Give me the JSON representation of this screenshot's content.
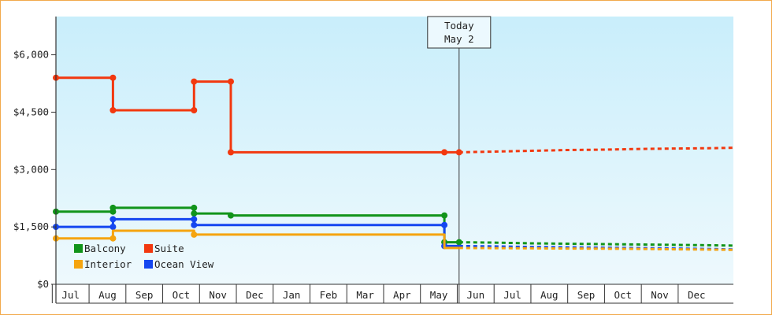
{
  "chart_data": {
    "type": "line",
    "ylim": [
      0,
      7000
    ],
    "yticks": [
      0,
      1500,
      3000,
      4500,
      6000
    ],
    "ytick_labels": [
      "$0",
      "$1,500",
      "$3,000",
      "$4,500",
      "$6,000"
    ],
    "x_months": [
      "Jul",
      "Aug",
      "Sep",
      "Oct",
      "Nov",
      "Dec",
      "Jan",
      "Feb",
      "Mar",
      "Apr",
      "May",
      "Jun",
      "Jul",
      "Aug",
      "Sep",
      "Oct",
      "Nov",
      "Dec"
    ],
    "xlim": [
      -0.4,
      18.0
    ],
    "today": {
      "x": 10.55,
      "label_line1": "Today",
      "label_line2": "May 2"
    },
    "background": {
      "top": "#c9eefb",
      "bottom": "#eef9fd"
    },
    "legend": [
      {
        "name": "Balcony",
        "color": "#11941a"
      },
      {
        "name": "Suite",
        "color": "#f2380f"
      },
      {
        "name": "Interior",
        "color": "#f5a40f"
      },
      {
        "name": "Ocean View",
        "color": "#1547f0"
      }
    ],
    "series": [
      {
        "name": "Suite",
        "color": "#f2380f",
        "history": [
          [
            -0.4,
            5400
          ],
          [
            1.15,
            5400
          ],
          [
            1.15,
            4550
          ],
          [
            3.35,
            4550
          ],
          [
            3.35,
            5300
          ],
          [
            4.35,
            5300
          ],
          [
            4.35,
            3450
          ],
          [
            10.15,
            3450
          ],
          [
            10.55,
            3450
          ]
        ],
        "markers": [
          [
            -0.4,
            5400
          ],
          [
            1.15,
            5400
          ],
          [
            1.15,
            4550
          ],
          [
            3.35,
            4550
          ],
          [
            3.35,
            5300
          ],
          [
            4.35,
            5300
          ],
          [
            4.35,
            3450
          ],
          [
            10.15,
            3450
          ],
          [
            10.55,
            3450
          ]
        ],
        "forecast": [
          [
            10.55,
            3450
          ],
          [
            11.5,
            3470
          ],
          [
            12.5,
            3490
          ],
          [
            13.5,
            3510
          ],
          [
            14.5,
            3520
          ],
          [
            15.5,
            3540
          ],
          [
            16.5,
            3550
          ],
          [
            17.5,
            3560
          ],
          [
            18.0,
            3570
          ]
        ]
      },
      {
        "name": "Balcony",
        "color": "#11941a",
        "history": [
          [
            -0.4,
            1900
          ],
          [
            1.15,
            1900
          ],
          [
            1.15,
            2000
          ],
          [
            3.35,
            2000
          ],
          [
            3.35,
            1850
          ],
          [
            4.35,
            1850
          ],
          [
            4.35,
            1800
          ],
          [
            10.15,
            1800
          ],
          [
            10.15,
            1100
          ],
          [
            10.55,
            1100
          ]
        ],
        "markers": [
          [
            -0.4,
            1900
          ],
          [
            1.15,
            1900
          ],
          [
            1.15,
            2000
          ],
          [
            3.35,
            2000
          ],
          [
            3.35,
            1850
          ],
          [
            4.35,
            1800
          ],
          [
            10.15,
            1800
          ],
          [
            10.15,
            1100
          ],
          [
            10.55,
            1100
          ]
        ],
        "forecast": [
          [
            10.55,
            1100
          ],
          [
            11.5,
            1090
          ],
          [
            12.5,
            1070
          ],
          [
            13.5,
            1060
          ],
          [
            14.5,
            1050
          ],
          [
            15.5,
            1040
          ],
          [
            16.5,
            1030
          ],
          [
            17.5,
            1020
          ],
          [
            18.0,
            1010
          ]
        ]
      },
      {
        "name": "Ocean View",
        "color": "#1547f0",
        "history": [
          [
            -0.4,
            1500
          ],
          [
            1.15,
            1500
          ],
          [
            1.15,
            1700
          ],
          [
            3.35,
            1700
          ],
          [
            3.35,
            1550
          ],
          [
            10.15,
            1550
          ],
          [
            10.15,
            1000
          ],
          [
            10.55,
            1000
          ]
        ],
        "markers": [
          [
            -0.4,
            1500
          ],
          [
            1.15,
            1500
          ],
          [
            1.15,
            1700
          ],
          [
            3.35,
            1700
          ],
          [
            3.35,
            1550
          ],
          [
            10.15,
            1550
          ],
          [
            10.15,
            1000
          ]
        ],
        "forecast": [
          [
            10.55,
            1000
          ],
          [
            11.5,
            990
          ],
          [
            12.5,
            975
          ],
          [
            13.5,
            965
          ],
          [
            14.5,
            955
          ],
          [
            15.5,
            945
          ],
          [
            16.5,
            935
          ],
          [
            17.5,
            920
          ],
          [
            18.0,
            910
          ]
        ]
      },
      {
        "name": "Interior",
        "color": "#f5a40f",
        "history": [
          [
            -0.4,
            1200
          ],
          [
            1.15,
            1200
          ],
          [
            1.15,
            1400
          ],
          [
            3.35,
            1400
          ],
          [
            3.35,
            1300
          ],
          [
            10.15,
            1300
          ],
          [
            10.15,
            950
          ],
          [
            10.55,
            950
          ]
        ],
        "markers": [
          [
            -0.4,
            1200
          ],
          [
            1.15,
            1200
          ],
          [
            3.35,
            1300
          ]
        ],
        "forecast": [
          [
            10.55,
            950
          ],
          [
            11.5,
            945
          ],
          [
            12.5,
            940
          ],
          [
            13.5,
            935
          ],
          [
            14.5,
            930
          ],
          [
            15.5,
            925
          ],
          [
            16.5,
            915
          ],
          [
            17.5,
            905
          ],
          [
            18.0,
            900
          ]
        ]
      }
    ]
  }
}
